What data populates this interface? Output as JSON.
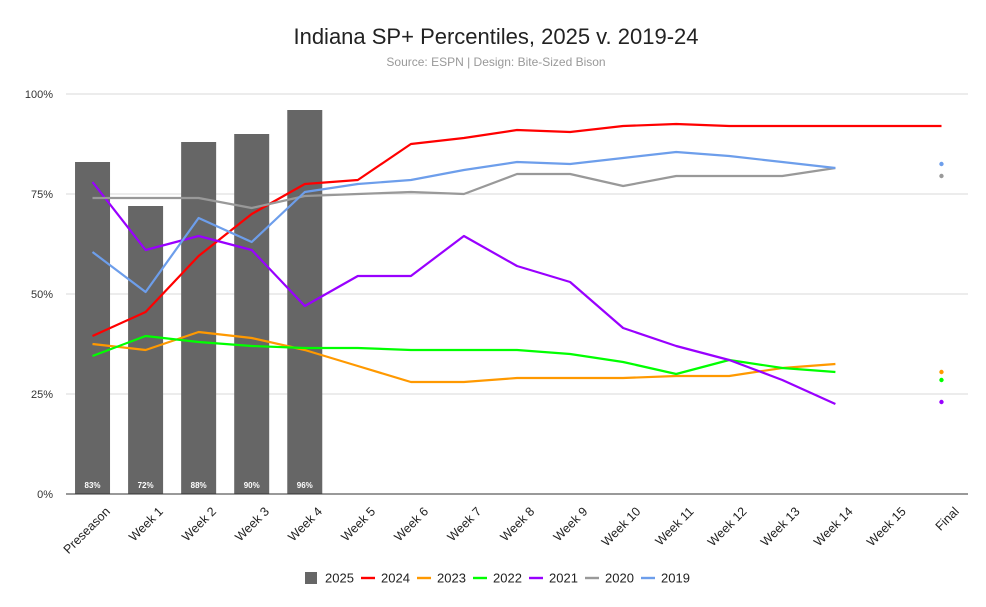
{
  "chart_data": {
    "type": "bar+line",
    "title": "Indiana SP+ Percentiles, 2025 v. 2019-24",
    "subtitle": "Source: ESPN | Design: Bite-Sized Bison",
    "categories": [
      "Preseason",
      "Week 1",
      "Week 2",
      "Week 3",
      "Week 4",
      "Week 5",
      "Week 6",
      "Week 7",
      "Week 8",
      "Week 9",
      "Week 10",
      "Week 11",
      "Week 12",
      "Week 13",
      "Week 14",
      "Week 15",
      "Final"
    ],
    "ylim": [
      0,
      100
    ],
    "yticks": [
      {
        "value": 0,
        "label": "0%"
      },
      {
        "value": 25,
        "label": "25%"
      },
      {
        "value": 50,
        "label": "50%"
      },
      {
        "value": 75,
        "label": "75%"
      },
      {
        "value": 100,
        "label": "100%"
      }
    ],
    "bars": {
      "name": "2025",
      "color": "#666666",
      "values": [
        83,
        72,
        88,
        90,
        96
      ],
      "labels": [
        "83%",
        "72%",
        "88%",
        "90%",
        "96%"
      ]
    },
    "series": [
      {
        "name": "2024",
        "color": "#ff0000",
        "values": [
          39.5,
          45.5,
          59.5,
          70,
          77.5,
          78.5,
          87.5,
          89,
          91,
          90.5,
          92,
          92.5,
          92,
          92,
          92,
          92,
          92
        ],
        "final": null
      },
      {
        "name": "2023",
        "color": "#ff9900",
        "values": [
          37.5,
          36,
          40.5,
          39,
          36,
          32,
          28,
          28,
          29,
          29,
          29,
          29.5,
          29.5,
          31.5,
          32.5,
          null,
          null
        ],
        "final": 30.5
      },
      {
        "name": "2022",
        "color": "#00ff00",
        "values": [
          34.5,
          39.5,
          38,
          37,
          36.5,
          36.5,
          36,
          36,
          36,
          35,
          33,
          30,
          33.5,
          31.5,
          30.5,
          null,
          null
        ],
        "final": 28.5
      },
      {
        "name": "2021",
        "color": "#9900ff",
        "values": [
          78,
          61,
          64.5,
          61,
          47,
          54.5,
          54.5,
          64.5,
          57,
          53,
          41.5,
          37,
          33.5,
          28.5,
          22.5,
          null,
          null
        ],
        "final": 23
      },
      {
        "name": "2020",
        "color": "#999999",
        "values": [
          74,
          74,
          74,
          71.5,
          74.5,
          75,
          75.5,
          75,
          80,
          80,
          77,
          79.5,
          79.5,
          79.5,
          81.5,
          null,
          null
        ],
        "final": 79.5
      },
      {
        "name": "2019",
        "color": "#6d9eeb",
        "values": [
          60.5,
          50.5,
          69,
          63,
          75.5,
          77.5,
          78.5,
          81,
          83,
          82.5,
          84,
          85.5,
          84.5,
          83,
          81.5,
          null,
          null
        ],
        "final": 82.5
      }
    ],
    "legend": [
      "2025",
      "2024",
      "2023",
      "2022",
      "2021",
      "2020",
      "2019"
    ],
    "legend_position": "bottom-center",
    "grid": true
  }
}
